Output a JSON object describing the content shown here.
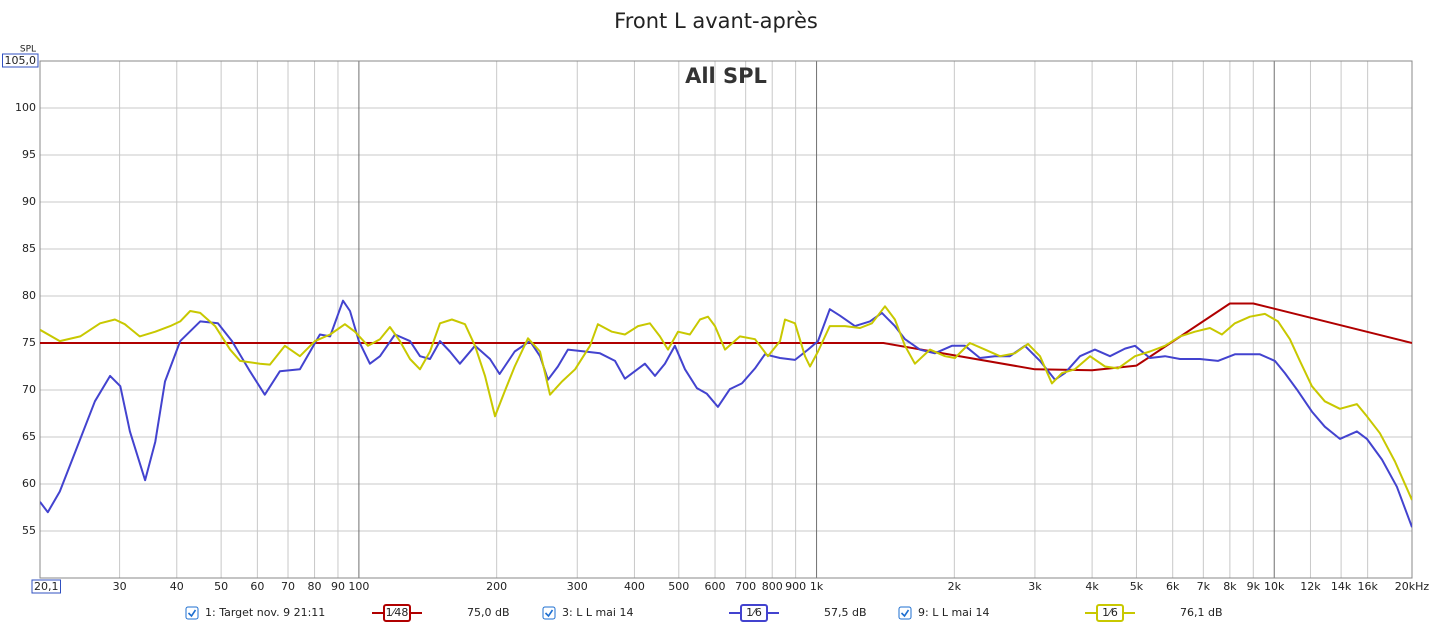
{
  "chart_data": {
    "type": "line",
    "title": "Front L avant-après",
    "subtitle": "All SPL",
    "y_label": "SPL",
    "xscale": "log",
    "grid": true,
    "xlim": [
      20.1,
      20000
    ],
    "ylim": [
      50,
      105
    ],
    "yticks": [
      55,
      60,
      65,
      70,
      75,
      80,
      85,
      90,
      95,
      100,
      {
        "value": 105,
        "label": "105,0"
      }
    ],
    "xticks": [
      {
        "value": 20.1,
        "label": "20,1"
      },
      30,
      40,
      50,
      60,
      70,
      80,
      90,
      100,
      200,
      300,
      400,
      500,
      600,
      700,
      800,
      900,
      {
        "value": 1000,
        "label": "1k"
      },
      {
        "value": 2000,
        "label": "2k"
      },
      {
        "value": 3000,
        "label": "3k"
      },
      {
        "value": 4000,
        "label": "4k"
      },
      {
        "value": 5000,
        "label": "5k"
      },
      {
        "value": 6000,
        "label": "6k"
      },
      {
        "value": 7000,
        "label": "7k"
      },
      {
        "value": 8000,
        "label": "8k"
      },
      {
        "value": 9000,
        "label": "9k"
      },
      {
        "value": 10000,
        "label": "10k"
      },
      {
        "value": 12000,
        "label": "12k"
      },
      {
        "value": 14000,
        "label": "14k"
      },
      {
        "value": 16000,
        "label": "16k"
      },
      {
        "value": 20000,
        "label": "20kHz"
      }
    ],
    "series": [
      {
        "name": "1: Target nov. 9 21:11",
        "color": "#b00000",
        "smoothing": "1⁄48",
        "level": "75,0 dB",
        "x": [
          20.1,
          1400,
          3000,
          4000,
          5000,
          8000,
          9000,
          20000
        ],
        "values": [
          75,
          75,
          72.2,
          72.1,
          72.6,
          79.2,
          79.2,
          75
        ]
      },
      {
        "name": "3: L L mai 14",
        "color": "#4343cf",
        "smoothing": "1⁄6",
        "level": "57,5 dB",
        "x": [
          20.1,
          20.9,
          22.2,
          24.0,
          26.5,
          28.6,
          30.1,
          31.6,
          34.1,
          35.9,
          37.7,
          40.7,
          45.0,
          49.2,
          52.8,
          57.8,
          62.3,
          67.2,
          74.3,
          82.2,
          86.5,
          92.3,
          95.6,
          100,
          105.7,
          111.2,
          119.9,
          129.3,
          136,
          143,
          150.4,
          158.1,
          166.2,
          179.3,
          193.4,
          203,
          219,
          236.5,
          248.7,
          258.9,
          272.2,
          286.2,
          311.8,
          336.3,
          362.8,
          381.3,
          401,
          421.7,
          443.6,
          466.3,
          490.4,
          515.8,
          547.7,
          576,
          608.8,
          646.6,
          687,
          733.7,
          771.2,
          832,
          897,
          957.6,
          1007,
          1069,
          1125,
          1213,
          1308,
          1389,
          1483,
          1560,
          1682,
          1813,
          1976,
          2110,
          2275,
          2452,
          2645,
          2852,
          3077,
          3318,
          3489,
          3763,
          4056,
          4376,
          4719,
          4963,
          5351,
          5771,
          6223,
          6880,
          7533,
          8205,
          9306,
          10036,
          10553,
          11264,
          12086,
          12900,
          13915,
          15159,
          15943,
          17194,
          18540,
          20000
        ],
        "values": [
          58.1,
          57.0,
          59.2,
          63.4,
          68.8,
          71.5,
          70.4,
          65.6,
          60.4,
          64.5,
          70.9,
          75.2,
          77.3,
          77.1,
          75.2,
          72.0,
          69.5,
          72.0,
          72.2,
          75.9,
          75.7,
          79.5,
          78.4,
          75.2,
          72.8,
          73.6,
          75.9,
          75.2,
          73.6,
          73.3,
          75.2,
          74.1,
          72.8,
          74.7,
          73.3,
          71.7,
          74.1,
          75.2,
          73.6,
          71.1,
          72.5,
          74.3,
          74.1,
          73.9,
          73.1,
          71.2,
          72.0,
          72.8,
          71.5,
          72.8,
          74.7,
          72.2,
          70.2,
          69.6,
          68.2,
          70.1,
          70.7,
          72.3,
          73.8,
          73.4,
          73.2,
          74.3,
          75.2,
          78.6,
          77.9,
          76.8,
          77.3,
          78.2,
          76.8,
          75.4,
          74.3,
          73.9,
          74.7,
          74.7,
          73.4,
          73.6,
          73.6,
          74.7,
          73.1,
          71.1,
          71.8,
          73.6,
          74.3,
          73.6,
          74.4,
          74.7,
          73.4,
          73.6,
          73.3,
          73.3,
          73.1,
          73.8,
          73.8,
          73.1,
          71.8,
          69.9,
          67.7,
          66.1,
          64.8,
          65.6,
          64.8,
          62.6,
          59.7,
          55.4
        ]
      },
      {
        "name": "9: L L mai 14",
        "color": "#c8c800",
        "smoothing": "1⁄6",
        "level": "76,1 dB",
        "x": [
          20.1,
          22.2,
          24.6,
          27.2,
          29.3,
          30.8,
          33.2,
          35.9,
          38.7,
          40.7,
          42.8,
          45.0,
          48.5,
          52.3,
          55.0,
          60.8,
          63.9,
          68.9,
          74.3,
          80.2,
          86.5,
          93.2,
          98,
          104.7,
          111.2,
          116.9,
          122.9,
          129.3,
          136,
          143,
          150.4,
          159.7,
          170.5,
          179.3,
          188.6,
          198.3,
          208.5,
          219,
          234.2,
          248.7,
          261.5,
          277.8,
          296.7,
          319.8,
          332.9,
          357.2,
          381.3,
          407.3,
          432.3,
          454.6,
          473.6,
          497.9,
          528.8,
          556.2,
          579,
          599.8,
          630.7,
          680,
          733.7,
          782.9,
          832,
          853,
          897,
          943.5,
          967.5,
          1007,
          1069,
          1154,
          1244,
          1321,
          1411,
          1483,
          1560,
          1640,
          1769,
          1908,
          2006,
          2163,
          2334,
          2517,
          2712,
          2897,
          3077,
          3268,
          3437,
          3669,
          3958,
          4267,
          4556,
          4963,
          5351,
          5771,
          6223,
          6709,
          7236,
          7684,
          8205,
          8850,
          9543,
          10189,
          10820,
          11377,
          12086,
          12900,
          13915,
          15159,
          15943,
          17021,
          18353,
          20000
        ],
        "values": [
          76.4,
          75.2,
          75.7,
          77.1,
          77.5,
          77.0,
          75.7,
          76.2,
          76.8,
          77.3,
          78.4,
          78.2,
          76.8,
          74.3,
          73.1,
          72.8,
          72.7,
          74.7,
          73.6,
          75.2,
          75.9,
          77.0,
          76.2,
          74.7,
          75.4,
          76.7,
          75.2,
          73.3,
          72.2,
          74.1,
          77.1,
          77.5,
          77.0,
          74.7,
          71.5,
          67.2,
          69.9,
          72.5,
          75.5,
          74.1,
          69.5,
          70.9,
          72.2,
          74.7,
          77.0,
          76.2,
          75.9,
          76.8,
          77.1,
          75.7,
          74.3,
          76.2,
          75.9,
          77.5,
          77.8,
          76.8,
          74.3,
          75.7,
          75.4,
          73.6,
          75.2,
          77.5,
          77.1,
          73.6,
          72.5,
          74.1,
          76.8,
          76.8,
          76.6,
          77.1,
          78.9,
          77.5,
          74.7,
          72.8,
          74.3,
          73.6,
          73.4,
          75.0,
          74.3,
          73.6,
          73.9,
          74.9,
          73.6,
          70.7,
          71.8,
          72.2,
          73.6,
          72.5,
          72.3,
          73.6,
          74.1,
          74.7,
          75.7,
          76.2,
          76.6,
          75.9,
          77.1,
          77.8,
          78.1,
          77.3,
          75.4,
          73.1,
          70.4,
          68.8,
          68.0,
          68.5,
          67.2,
          65.4,
          62.4,
          58.3
        ]
      }
    ]
  }
}
